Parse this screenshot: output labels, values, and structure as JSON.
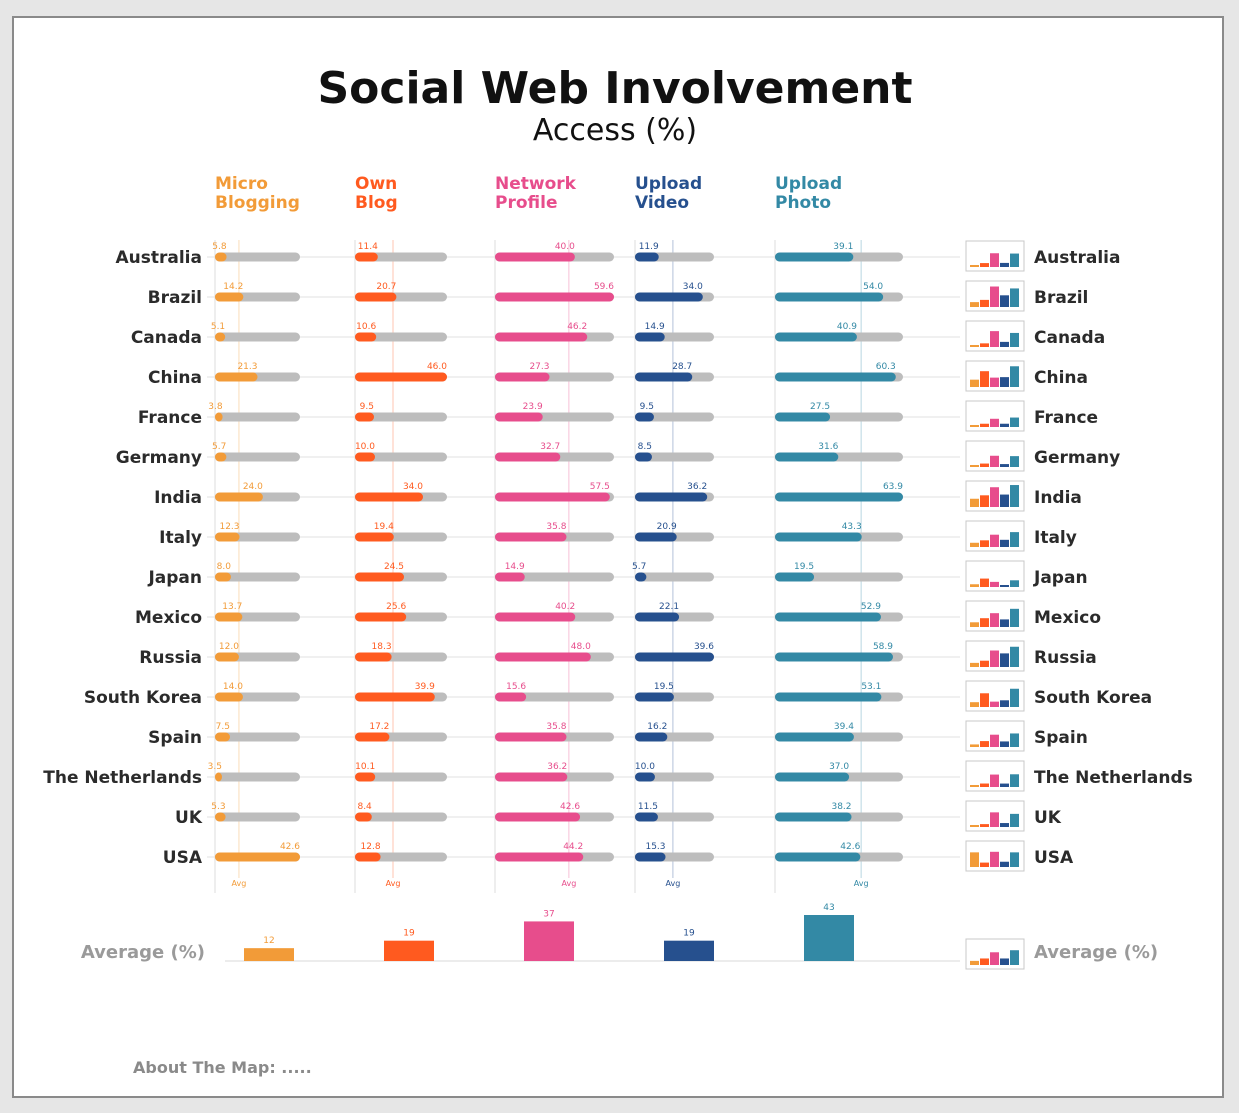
{
  "title": "Social Web Involvement",
  "subtitle": "Access (%)",
  "average_label": "Average (%)",
  "avg_tick_label": "Avg",
  "footer": "About The Map: .....",
  "colors": {
    "micro_blogging": "#f29b38",
    "own_blog": "#ff5a1f",
    "network_profile": "#e74d8c",
    "upload_video": "#26508e",
    "upload_photo": "#3389a5",
    "track": "#bdbdbd",
    "country_text": "#2b2b2b",
    "average_text": "#9a9a9a"
  },
  "chart_data": {
    "type": "bar",
    "title": "Social Web Involvement",
    "subtitle": "Access (%)",
    "orientation": "horizontal",
    "xlim": [
      0,
      64
    ],
    "categories": [
      "Australia",
      "Brazil",
      "Canada",
      "China",
      "France",
      "Germany",
      "India",
      "Italy",
      "Japan",
      "Mexico",
      "Russia",
      "South Korea",
      "Spain",
      "The Netherlands",
      "UK",
      "USA"
    ],
    "series": [
      {
        "key": "micro_blogging",
        "name_lines": [
          "Micro",
          "Blogging"
        ],
        "color": "#f29b38",
        "average": 12,
        "avg_display": "12",
        "values": [
          5.8,
          14.2,
          5.1,
          21.3,
          3.8,
          5.7,
          24.0,
          12.3,
          8.0,
          13.7,
          12.0,
          14.0,
          7.5,
          3.5,
          5.3,
          42.6
        ],
        "labels": [
          "5.8",
          "14.2",
          "5.1",
          "21.3",
          "3.8",
          "5.7",
          "24.0",
          "12.3",
          "8.0",
          "13.7",
          "12.0",
          "14.0",
          "7.5",
          "3.5",
          "5.3",
          "42.6"
        ]
      },
      {
        "key": "own_blog",
        "name_lines": [
          "Own",
          "Blog"
        ],
        "color": "#ff5a1f",
        "average": 19,
        "avg_display": "19",
        "values": [
          11.4,
          20.7,
          10.6,
          46.0,
          9.5,
          10.0,
          34.0,
          19.4,
          24.5,
          25.6,
          18.3,
          39.9,
          17.2,
          10.1,
          8.4,
          12.8
        ],
        "labels": [
          "11.4",
          "20.7",
          "10.6",
          "46.0",
          "9.5",
          "10.0",
          "34.0",
          "19.4",
          "24.5",
          "25.6",
          "18.3",
          "39.9",
          "17.2",
          "10.1",
          "8.4",
          "12.8"
        ]
      },
      {
        "key": "network_profile",
        "name_lines": [
          "Network",
          "Profile"
        ],
        "color": "#e74d8c",
        "average": 37,
        "avg_display": "37",
        "values": [
          40.0,
          59.6,
          46.2,
          27.3,
          23.9,
          32.7,
          57.5,
          35.8,
          14.9,
          40.2,
          48.0,
          15.6,
          35.8,
          36.2,
          42.6,
          44.2
        ],
        "labels": [
          "40.0",
          "59.6",
          "46.2",
          "27.3",
          "23.9",
          "32.7",
          "57.5",
          "35.8",
          "14.9",
          "40.2",
          "48.0",
          "15.6",
          "35.8",
          "36.2",
          "42.6",
          "44.2"
        ]
      },
      {
        "key": "upload_video",
        "name_lines": [
          "Upload",
          "Video"
        ],
        "color": "#26508e",
        "average": 19,
        "avg_display": "19",
        "values": [
          11.9,
          34.0,
          14.9,
          28.7,
          9.5,
          8.5,
          36.2,
          20.9,
          5.7,
          22.1,
          39.6,
          19.5,
          16.2,
          10.0,
          11.5,
          15.3
        ],
        "labels": [
          "11.9",
          "34.0",
          "14.9",
          "28.7",
          "9.5",
          "8.5",
          "36.2",
          "20.9",
          "5.7",
          "22.1",
          "39.6",
          "19.5",
          "16.2",
          "10.0",
          "11.5",
          "15.3"
        ]
      },
      {
        "key": "upload_photo",
        "name_lines": [
          "Upload",
          "Photo"
        ],
        "color": "#3389a5",
        "average": 43,
        "avg_display": "43",
        "values": [
          39.1,
          54.0,
          40.9,
          60.3,
          27.5,
          31.6,
          63.9,
          43.3,
          19.5,
          52.9,
          58.9,
          53.1,
          39.4,
          37.0,
          38.2,
          42.6
        ],
        "labels": [
          "39.1",
          "54.0",
          "40.9",
          "60.3",
          "27.5",
          "31.6",
          "63.9",
          "43.3",
          "19.5",
          "52.9",
          "58.9",
          "53.1",
          "39.4",
          "37.0",
          "38.2",
          "42.6"
        ]
      }
    ]
  }
}
